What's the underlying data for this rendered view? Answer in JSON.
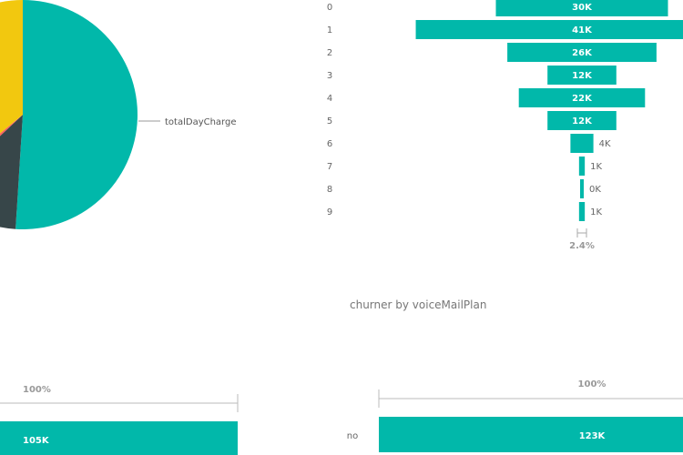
{
  "colors": {
    "teal": "#01B8AA",
    "dark": "#374649",
    "red": "#FD625E",
    "yellow": "#F2C80F",
    "axis": "#bbbbbb",
    "label_light": "#ffffff",
    "label_dark": "#666666",
    "pct": "#999999"
  },
  "charts": {
    "funnel": {
      "title": "churner by  voiceMailPlan",
      "conversion_label": "2.4%"
    },
    "bottom_left": {
      "pct_label": "100%"
    },
    "bottom_right": {
      "pct_label": "100%"
    }
  },
  "chart_data": [
    {
      "type": "pie",
      "partial": true,
      "labels": [
        "totalDayCharge",
        "",
        "",
        ""
      ],
      "values": [
        51,
        12,
        1,
        36
      ],
      "colors": [
        "#01B8AA",
        "#374649",
        "#FD625E",
        "#F2C80F"
      ]
    },
    {
      "type": "bar",
      "orientation": "funnel",
      "categories": [
        "0",
        "1",
        "2",
        "3",
        "4",
        "5",
        "6",
        "7",
        "8",
        "9"
      ],
      "values": [
        30,
        41,
        26,
        12,
        22,
        12,
        4,
        1,
        0,
        1
      ],
      "value_labels": [
        "30K",
        "41K",
        "26K",
        "12K",
        "22K",
        "12K",
        "4K",
        "1K",
        "0K",
        "1K"
      ],
      "unit": "K",
      "xlim": [
        0,
        41
      ]
    },
    {
      "type": "bar",
      "orientation": "funnel",
      "categories": [
        ""
      ],
      "values": [
        105
      ],
      "value_labels": [
        "105K"
      ],
      "unit": "K"
    },
    {
      "type": "bar",
      "orientation": "funnel",
      "categories": [
        "no"
      ],
      "values": [
        123
      ],
      "value_labels": [
        "123K"
      ],
      "unit": "K"
    }
  ]
}
